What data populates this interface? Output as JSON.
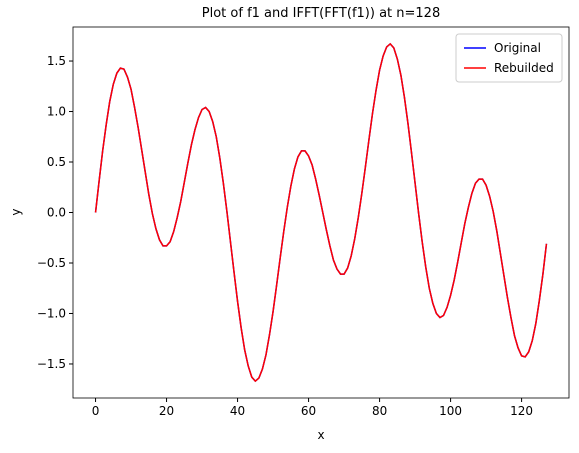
{
  "chart_data": {
    "type": "line",
    "title": "Plot of f1 and IFFT(FFT(f1)) at n=128",
    "x_label": "x",
    "y_label": "y",
    "x": [
      0,
      1,
      2,
      3,
      4,
      5,
      6,
      7,
      8,
      9,
      10,
      11,
      12,
      13,
      14,
      15,
      16,
      17,
      18,
      19,
      20,
      21,
      22,
      23,
      24,
      25,
      26,
      27,
      28,
      29,
      30,
      31,
      32,
      33,
      34,
      35,
      36,
      37,
      38,
      39,
      40,
      41,
      42,
      43,
      44,
      45,
      46,
      47,
      48,
      49,
      50,
      51,
      52,
      53,
      54,
      55,
      56,
      57,
      58,
      59,
      60,
      61,
      62,
      63,
      64,
      65,
      66,
      67,
      68,
      69,
      70,
      71,
      72,
      73,
      74,
      75,
      76,
      77,
      78,
      79,
      80,
      81,
      82,
      83,
      84,
      85,
      86,
      87,
      88,
      89,
      90,
      91,
      92,
      93,
      94,
      95,
      96,
      97,
      98,
      99,
      100,
      101,
      102,
      103,
      104,
      105,
      106,
      107,
      108,
      109,
      110,
      111,
      112,
      113,
      114,
      115,
      116,
      117,
      118,
      119,
      120,
      121,
      122,
      123,
      124,
      125,
      126,
      127
    ],
    "series": [
      {
        "name": "Original",
        "color": "#0000ff",
        "values": [
          0,
          0.31,
          0.61,
          0.87,
          1.1,
          1.27,
          1.38,
          1.43,
          1.42,
          1.34,
          1.22,
          1.04,
          0.84,
          0.62,
          0.4,
          0.18,
          -0.01,
          -0.16,
          -0.27,
          -0.33,
          -0.33,
          -0.29,
          -0.19,
          -0.05,
          0.11,
          0.3,
          0.49,
          0.67,
          0.82,
          0.94,
          1.02,
          1.04,
          1.0,
          0.9,
          0.75,
          0.54,
          0.29,
          0.01,
          -0.29,
          -0.59,
          -0.88,
          -1.14,
          -1.36,
          -1.52,
          -1.63,
          -1.67,
          -1.64,
          -1.55,
          -1.41,
          -1.21,
          -0.98,
          -0.72,
          -0.45,
          -0.19,
          0.05,
          0.26,
          0.43,
          0.55,
          0.61,
          0.61,
          0.56,
          0.47,
          0.33,
          0.17,
          0,
          -0.17,
          -0.33,
          -0.47,
          -0.56,
          -0.61,
          -0.61,
          -0.55,
          -0.43,
          -0.26,
          -0.05,
          0.19,
          0.45,
          0.72,
          0.98,
          1.21,
          1.41,
          1.55,
          1.64,
          1.67,
          1.63,
          1.52,
          1.36,
          1.14,
          0.88,
          0.59,
          0.29,
          -0.01,
          -0.29,
          -0.54,
          -0.75,
          -0.9,
          -1.0,
          -1.04,
          -1.02,
          -0.94,
          -0.82,
          -0.67,
          -0.49,
          -0.3,
          -0.11,
          0.05,
          0.19,
          0.29,
          0.33,
          0.33,
          0.27,
          0.16,
          0.01,
          -0.18,
          -0.4,
          -0.62,
          -0.84,
          -1.04,
          -1.22,
          -1.34,
          -1.42,
          -1.43,
          -1.38,
          -1.27,
          -1.1,
          -0.87,
          -0.61,
          -0.31
        ]
      },
      {
        "name": "Rebuilded",
        "color": "#ff0000",
        "values": [
          0,
          0.31,
          0.61,
          0.87,
          1.1,
          1.27,
          1.38,
          1.43,
          1.42,
          1.34,
          1.22,
          1.04,
          0.84,
          0.62,
          0.4,
          0.18,
          -0.01,
          -0.16,
          -0.27,
          -0.33,
          -0.33,
          -0.29,
          -0.19,
          -0.05,
          0.11,
          0.3,
          0.49,
          0.67,
          0.82,
          0.94,
          1.02,
          1.04,
          1.0,
          0.9,
          0.75,
          0.54,
          0.29,
          0.01,
          -0.29,
          -0.59,
          -0.88,
          -1.14,
          -1.36,
          -1.52,
          -1.63,
          -1.67,
          -1.64,
          -1.55,
          -1.41,
          -1.21,
          -0.98,
          -0.72,
          -0.45,
          -0.19,
          0.05,
          0.26,
          0.43,
          0.55,
          0.61,
          0.61,
          0.56,
          0.47,
          0.33,
          0.17,
          0,
          -0.17,
          -0.33,
          -0.47,
          -0.56,
          -0.61,
          -0.61,
          -0.55,
          -0.43,
          -0.26,
          -0.05,
          0.19,
          0.45,
          0.72,
          0.98,
          1.21,
          1.41,
          1.55,
          1.64,
          1.67,
          1.63,
          1.52,
          1.36,
          1.14,
          0.88,
          0.59,
          0.29,
          -0.01,
          -0.29,
          -0.54,
          -0.75,
          -0.9,
          -1.0,
          -1.04,
          -1.02,
          -0.94,
          -0.82,
          -0.67,
          -0.49,
          -0.3,
          -0.11,
          0.05,
          0.19,
          0.29,
          0.33,
          0.33,
          0.27,
          0.16,
          0.01,
          -0.18,
          -0.4,
          -0.62,
          -0.84,
          -1.04,
          -1.22,
          -1.34,
          -1.42,
          -1.43,
          -1.38,
          -1.27,
          -1.1,
          -0.87,
          -0.61,
          -0.31
        ]
      }
    ],
    "xlim": [
      -6.35,
      133.35
    ],
    "xticks": [
      0,
      20,
      40,
      60,
      80,
      100,
      120
    ],
    "ylim": [
      -1.837,
      1.837
    ],
    "yticks": [
      {
        "value": -1.5,
        "label": "−1.5"
      },
      {
        "value": -1,
        "label": "−1.0"
      },
      {
        "value": -0.5,
        "label": "−0.5"
      },
      {
        "value": 0,
        "label": "0.0"
      },
      0.5,
      {
        "value": 1,
        "label": "1.0"
      },
      1.5
    ],
    "grid": false,
    "legend": "upper right"
  }
}
